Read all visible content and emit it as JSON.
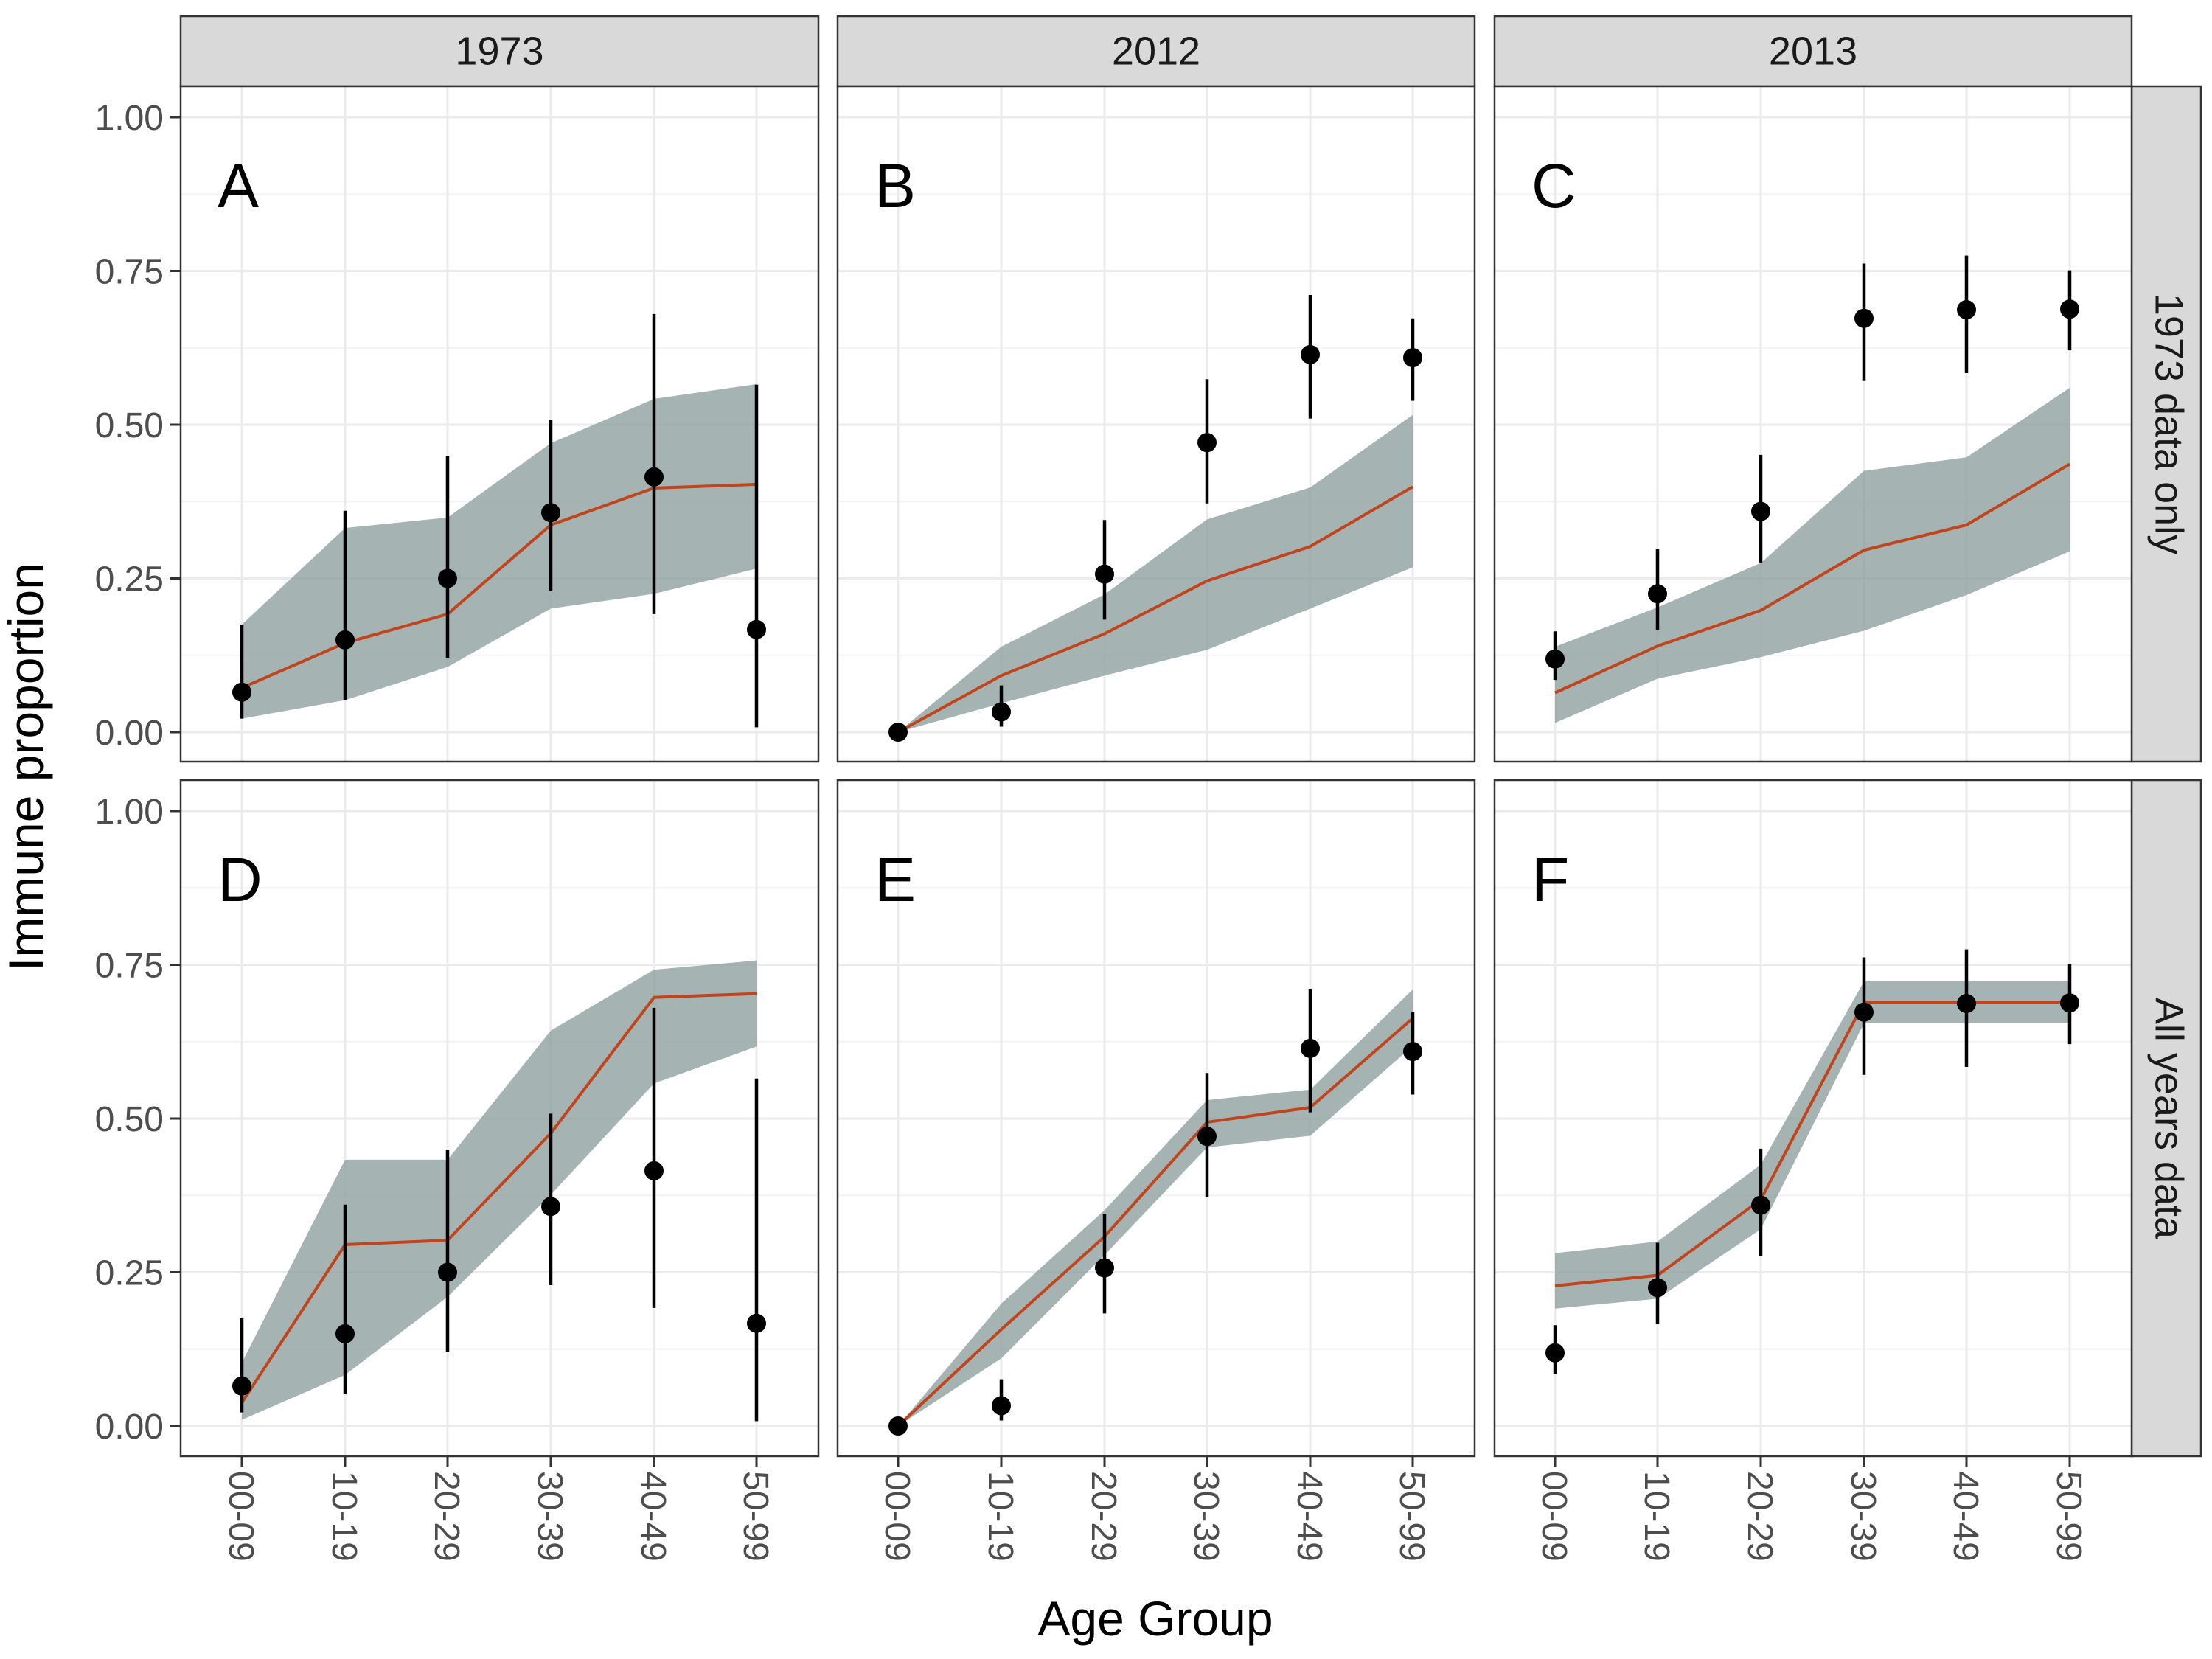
{
  "chart_data": {
    "type": "line",
    "xlabel": "Age Group",
    "ylabel": "Immune proportion",
    "ylim": [
      0,
      1
    ],
    "yticks": [
      "0.00",
      "0.25",
      "0.50",
      "0.75",
      "1.00"
    ],
    "categories": [
      "00-09",
      "10-19",
      "20-29",
      "30-39",
      "40-49",
      "50-99"
    ],
    "columns": [
      "1973",
      "2012",
      "2013"
    ],
    "rows": [
      "1973 data only",
      "All years data"
    ],
    "grid": true,
    "colors": {
      "ribbon": "#8fa1a0",
      "line": "#c0441c",
      "points": "#000000",
      "strip_fill": "#d9d9d9",
      "grid": "#ebebeb"
    },
    "panels": [
      {
        "label": "A",
        "row": 0,
        "col": 0,
        "observed": [
          0.065,
          0.15,
          0.25,
          0.357,
          0.415,
          0.167
        ],
        "obs_lower": [
          0.022,
          0.052,
          0.121,
          0.229,
          0.192,
          0.008
        ],
        "obs_upper": [
          0.175,
          0.36,
          0.449,
          0.508,
          0.68,
          0.565
        ],
        "fit": [
          0.072,
          0.145,
          0.192,
          0.337,
          0.397,
          0.403
        ],
        "fit_lower": [
          0.022,
          0.052,
          0.106,
          0.201,
          0.225,
          0.266
        ],
        "fit_upper": [
          0.175,
          0.332,
          0.349,
          0.47,
          0.542,
          0.566
        ]
      },
      {
        "label": "B",
        "row": 0,
        "col": 1,
        "observed": [
          0.0,
          0.033,
          0.257,
          0.471,
          0.614,
          0.609
        ],
        "obs_lower": [
          0.0,
          0.009,
          0.183,
          0.372,
          0.51,
          0.539
        ],
        "obs_upper": [
          0.0,
          0.076,
          0.345,
          0.574,
          0.711,
          0.673
        ],
        "fit": [
          0.0,
          0.092,
          0.16,
          0.246,
          0.302,
          0.399
        ],
        "fit_lower": [
          0.0,
          0.047,
          0.092,
          0.134,
          0.201,
          0.268
        ],
        "fit_upper": [
          0.0,
          0.139,
          0.224,
          0.346,
          0.398,
          0.516
        ]
      },
      {
        "label": "C",
        "row": 0,
        "col": 2,
        "observed": [
          0.119,
          0.225,
          0.359,
          0.673,
          0.687,
          0.688
        ],
        "obs_lower": [
          0.085,
          0.166,
          0.276,
          0.571,
          0.584,
          0.621
        ],
        "obs_upper": [
          0.164,
          0.298,
          0.451,
          0.762,
          0.775,
          0.751
        ],
        "fit": [
          0.064,
          0.14,
          0.198,
          0.296,
          0.337,
          0.436
        ],
        "fit_lower": [
          0.015,
          0.087,
          0.122,
          0.165,
          0.223,
          0.294
        ],
        "fit_upper": [
          0.139,
          0.203,
          0.275,
          0.425,
          0.447,
          0.56
        ]
      },
      {
        "label": "D",
        "row": 1,
        "col": 0,
        "observed": [
          0.065,
          0.15,
          0.25,
          0.357,
          0.415,
          0.167
        ],
        "obs_lower": [
          0.022,
          0.052,
          0.121,
          0.229,
          0.192,
          0.008
        ],
        "obs_upper": [
          0.175,
          0.36,
          0.449,
          0.508,
          0.68,
          0.565
        ],
        "fit": [
          0.038,
          0.295,
          0.302,
          0.476,
          0.697,
          0.703
        ],
        "fit_lower": [
          0.01,
          0.083,
          0.21,
          0.376,
          0.557,
          0.617
        ],
        "fit_upper": [
          0.103,
          0.433,
          0.433,
          0.643,
          0.742,
          0.757
        ]
      },
      {
        "label": "E",
        "row": 1,
        "col": 1,
        "observed": [
          0.0,
          0.033,
          0.257,
          0.471,
          0.614,
          0.609
        ],
        "obs_lower": [
          0.0,
          0.009,
          0.183,
          0.372,
          0.51,
          0.539
        ],
        "obs_upper": [
          0.0,
          0.076,
          0.345,
          0.574,
          0.711,
          0.673
        ],
        "fit": [
          0.0,
          0.157,
          0.308,
          0.494,
          0.518,
          0.663
        ],
        "fit_lower": [
          0.0,
          0.11,
          0.278,
          0.453,
          0.472,
          0.618
        ],
        "fit_upper": [
          0.0,
          0.199,
          0.351,
          0.53,
          0.547,
          0.71
        ]
      },
      {
        "label": "F",
        "row": 1,
        "col": 2,
        "observed": [
          0.119,
          0.225,
          0.359,
          0.673,
          0.687,
          0.688
        ],
        "obs_lower": [
          0.085,
          0.166,
          0.276,
          0.571,
          0.584,
          0.621
        ],
        "obs_upper": [
          0.164,
          0.298,
          0.451,
          0.762,
          0.775,
          0.751
        ],
        "fit": [
          0.228,
          0.245,
          0.368,
          0.689,
          0.689,
          0.689
        ],
        "fit_lower": [
          0.191,
          0.207,
          0.32,
          0.655,
          0.655,
          0.655
        ],
        "fit_upper": [
          0.281,
          0.3,
          0.425,
          0.723,
          0.723,
          0.723
        ]
      }
    ]
  }
}
